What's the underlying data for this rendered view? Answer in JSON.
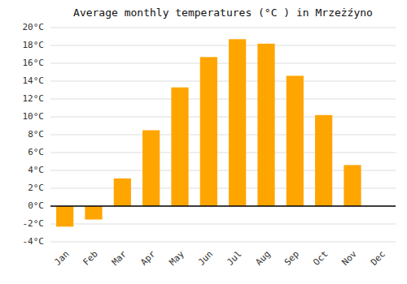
{
  "chart_data": {
    "type": "bar",
    "title": "Average monthly temperatures (°C ) in Mrzeżźyno",
    "categories": [
      "Jan",
      "Feb",
      "Mar",
      "Apr",
      "May",
      "Jun",
      "Jul",
      "Aug",
      "Sep",
      "Oct",
      "Nov",
      "Dec"
    ],
    "values": [
      -2.3,
      -1.5,
      3.1,
      8.5,
      13.3,
      16.7,
      18.7,
      18.2,
      14.6,
      10.2,
      4.6,
      0.0
    ],
    "color": "#FFA500",
    "ylim": [
      -4,
      20
    ],
    "yticks": [
      {
        "value": -4,
        "label": "-4°C"
      },
      {
        "value": -2,
        "label": "-2°C"
      },
      {
        "value": 0,
        "label": "0°C"
      },
      {
        "value": 2,
        "label": "2°C"
      },
      {
        "value": 4,
        "label": "4°C"
      },
      {
        "value": 6,
        "label": "6°C"
      },
      {
        "value": 8,
        "label": "8°C"
      },
      {
        "value": 10,
        "label": "10°C"
      },
      {
        "value": 12,
        "label": "12°C"
      },
      {
        "value": 14,
        "label": "14°C"
      },
      {
        "value": 16,
        "label": "16°C"
      },
      {
        "value": 18,
        "label": "18°C"
      },
      {
        "value": 20,
        "label": "20°C"
      }
    ],
    "grid": true
  }
}
